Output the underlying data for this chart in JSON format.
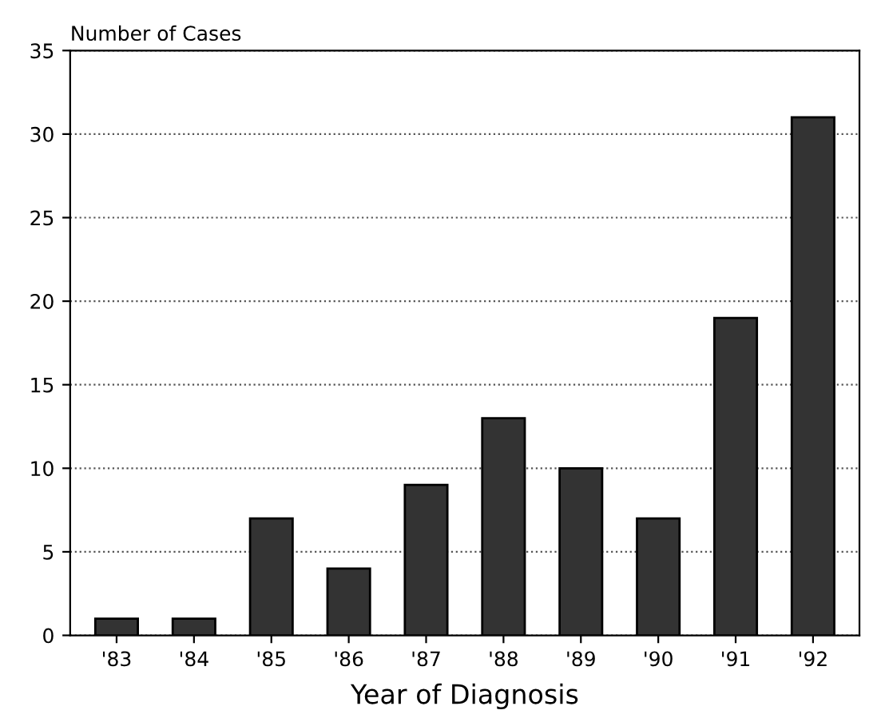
{
  "chart_data": {
    "type": "bar",
    "ylabel": "Number of Cases",
    "xlabel": "Year of Diagnosis",
    "categories": [
      "'83",
      "'84",
      "'85",
      "'86",
      "'87",
      "'88",
      "'89",
      "'90",
      "'91",
      "'92"
    ],
    "values": [
      1,
      1,
      7,
      4,
      9,
      13,
      10,
      7,
      19,
      31
    ],
    "color": "#333333",
    "ylim": [
      0,
      35
    ],
    "yticks": [
      0,
      5,
      10,
      15,
      20,
      25,
      30,
      35
    ],
    "grid": "y"
  }
}
